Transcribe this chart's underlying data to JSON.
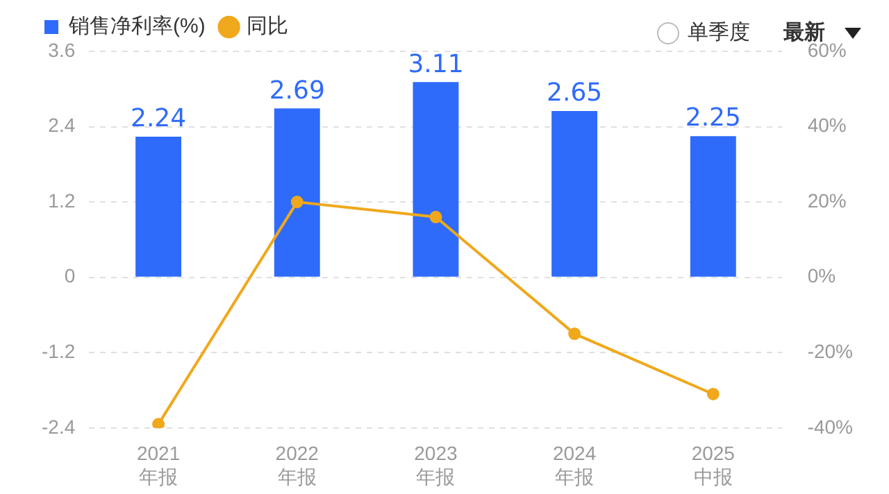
{
  "chart_data": {
    "type": "bar",
    "categories": [
      "2021\n年报",
      "2022\n年报",
      "2023\n年报",
      "2024\n年报",
      "2025\n中报"
    ],
    "series": [
      {
        "name": "销售净利率(%)",
        "color": "#2f6bfa",
        "values": [
          2.24,
          2.69,
          3.11,
          2.65,
          2.25
        ]
      },
      {
        "name": "同比",
        "type": "line",
        "axis": "y2",
        "color": "#f0a81c",
        "values": [
          -39,
          20,
          16,
          -15,
          -31
        ]
      }
    ],
    "ylim": [
      -2.4,
      3.6
    ],
    "yticks": [
      -2.4,
      -1.2,
      0,
      1.2,
      2.4,
      3.6
    ],
    "y2lim": [
      -40,
      60
    ],
    "y2ticks": [
      {
        "value": -40,
        "label": "-40%"
      },
      {
        "value": -20,
        "label": "-20%"
      },
      {
        "value": 0,
        "label": "0%"
      },
      {
        "value": 20,
        "label": "20%"
      },
      {
        "value": 40,
        "label": "40%"
      },
      {
        "value": 60,
        "label": "60%"
      }
    ],
    "value_labels": [
      "2.24",
      "2.69",
      "3.11",
      "2.65",
      "2.25"
    ],
    "grid": "y",
    "legend": "top left",
    "marker": "circle",
    "line_style": "solid",
    "annotations": [
      "单季度",
      "最新"
    ]
  }
}
